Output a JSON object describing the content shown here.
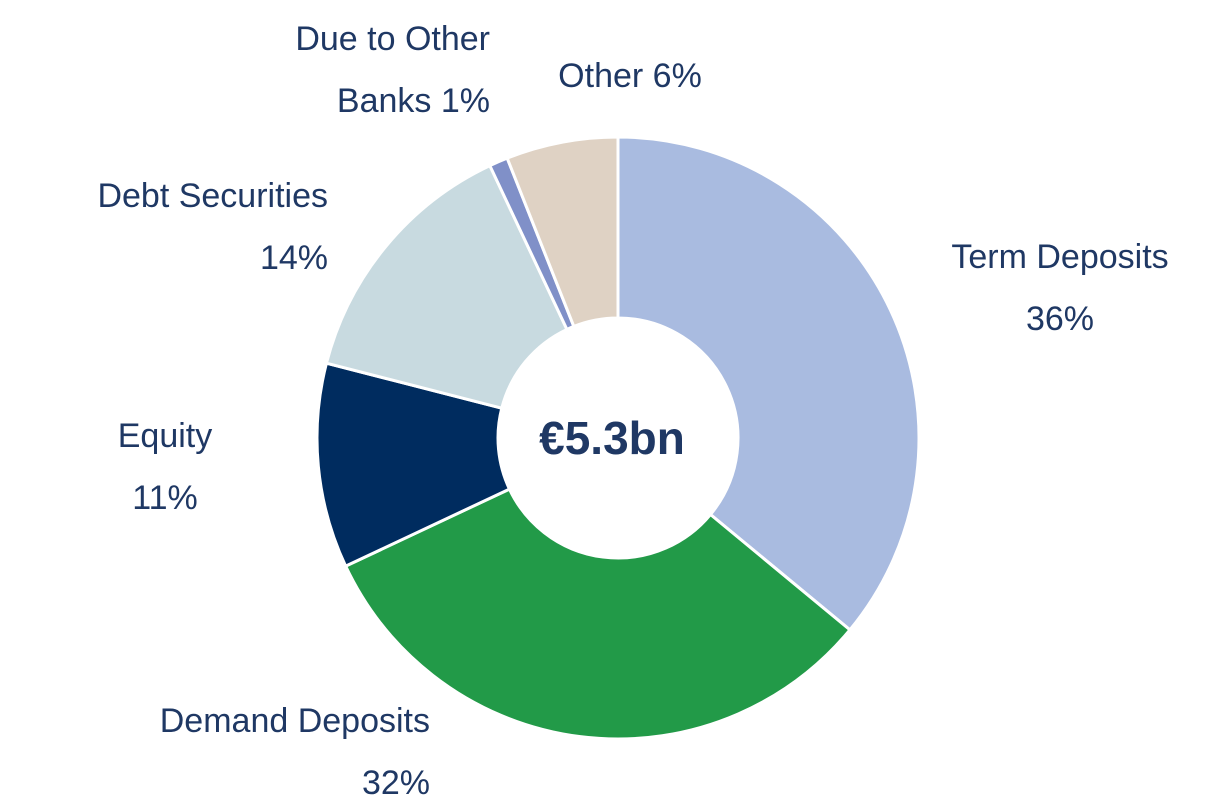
{
  "chart_data": {
    "type": "donut",
    "center_label": "€5.3bn",
    "categories": [
      "Term Deposits",
      "Demand Deposits",
      "Equity",
      "Debt Securities",
      "Due to Other Banks",
      "Other"
    ],
    "values": [
      36,
      32,
      11,
      14,
      1,
      6
    ],
    "value_labels": [
      "36%",
      "32%",
      "11%",
      "14%",
      "1%",
      "6%"
    ],
    "colors": [
      "#a9bbe0",
      "#229a48",
      "#002c5f",
      "#c8dae0",
      "#8090c8",
      "#dfd2c4"
    ]
  }
}
